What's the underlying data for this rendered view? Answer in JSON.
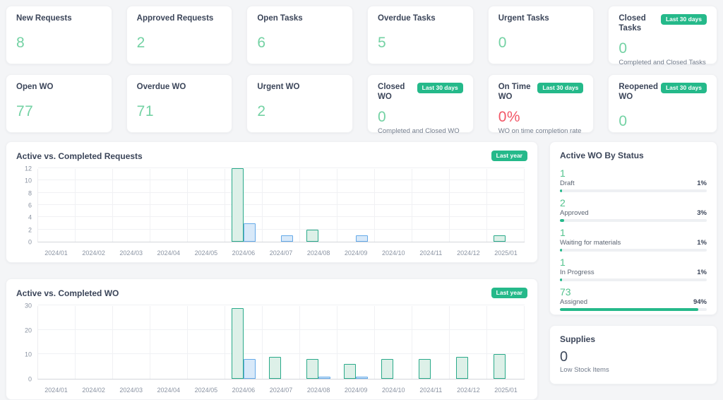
{
  "colors": {
    "accent_green": "#25b98a",
    "kpi_number_green": "#74d2a4",
    "kpi_number_red": "#f25767",
    "bar_active_fill": "#ddf0e8",
    "bar_active_stroke": "#2aaa8a",
    "bar_completed_fill": "#d8e9f9",
    "bar_completed_stroke": "#64a9e8"
  },
  "kpi_cards": [
    {
      "title": "New Requests",
      "value": "8",
      "color": "green"
    },
    {
      "title": "Approved Requests",
      "value": "2",
      "color": "green"
    },
    {
      "title": "Open Tasks",
      "value": "6",
      "color": "green"
    },
    {
      "title": "Overdue Tasks",
      "value": "5",
      "color": "green"
    },
    {
      "title": "Urgent Tasks",
      "value": "0",
      "color": "green"
    },
    {
      "title": "Closed Tasks",
      "value": "0",
      "color": "green",
      "badge": "Last 30 days",
      "subtitle": "Completed and Closed Tasks"
    },
    {
      "title": "Open WO",
      "value": "77",
      "color": "green"
    },
    {
      "title": "Overdue WO",
      "value": "71",
      "color": "green"
    },
    {
      "title": "Urgent WO",
      "value": "2",
      "color": "green"
    },
    {
      "title": "Closed WO",
      "value": "0",
      "color": "green",
      "badge": "Last 30 days",
      "subtitle": "Completed and Closed WO"
    },
    {
      "title": "On Time WO",
      "value": "0%",
      "color": "red",
      "badge": "Last 30 days",
      "subtitle": "WO on time completion rate"
    },
    {
      "title": "Reopened WO",
      "value": "0",
      "color": "green",
      "badge": "Last 30 days"
    }
  ],
  "chart_data": [
    {
      "type": "bar",
      "title": "Active vs. Completed Requests",
      "badge": "Last year",
      "categories": [
        "2024/01",
        "2024/02",
        "2024/03",
        "2024/04",
        "2024/05",
        "2024/06",
        "2024/07",
        "2024/08",
        "2024/09",
        "2024/10",
        "2024/11",
        "2024/12",
        "2025/01"
      ],
      "series": [
        {
          "name": "Active",
          "fill": "bar_active_fill",
          "stroke": "bar_active_stroke",
          "values": [
            0,
            0,
            0,
            0,
            0,
            12,
            0,
            2,
            0,
            0,
            0,
            0,
            1
          ]
        },
        {
          "name": "Completed",
          "fill": "bar_completed_fill",
          "stroke": "bar_completed_stroke",
          "values": [
            0,
            0,
            0,
            0,
            0,
            3,
            1,
            0,
            1,
            0,
            0,
            0,
            0
          ]
        }
      ],
      "ylim": [
        0,
        12
      ],
      "ytick_step": 2,
      "grid": true,
      "legend": "none"
    },
    {
      "type": "bar",
      "title": "Active vs. Completed WO",
      "badge": "Last year",
      "categories": [
        "2024/01",
        "2024/02",
        "2024/03",
        "2024/04",
        "2024/05",
        "2024/06",
        "2024/07",
        "2024/08",
        "2024/09",
        "2024/10",
        "2024/11",
        "2024/12",
        "2025/01"
      ],
      "series": [
        {
          "name": "Active",
          "fill": "bar_active_fill",
          "stroke": "bar_active_stroke",
          "values": [
            0,
            0,
            0,
            0,
            0,
            29,
            9,
            8,
            6,
            8,
            8,
            9,
            10
          ]
        },
        {
          "name": "Completed",
          "fill": "bar_completed_fill",
          "stroke": "bar_completed_stroke",
          "values": [
            0,
            0,
            0,
            0,
            0,
            8,
            0,
            1,
            1,
            0,
            0,
            0,
            0
          ]
        }
      ],
      "ylim": [
        0,
        30
      ],
      "ytick_step": 10,
      "grid": true,
      "legend": "none"
    }
  ],
  "wo_status": {
    "title": "Active WO By Status",
    "items": [
      {
        "count": "1",
        "label": "Draft",
        "percent": "1%",
        "percent_value": 1
      },
      {
        "count": "2",
        "label": "Approved",
        "percent": "3%",
        "percent_value": 3
      },
      {
        "count": "1",
        "label": "Waiting for materials",
        "percent": "1%",
        "percent_value": 1
      },
      {
        "count": "1",
        "label": "In Progress",
        "percent": "1%",
        "percent_value": 1
      },
      {
        "count": "73",
        "label": "Assigned",
        "percent": "94%",
        "percent_value": 94
      }
    ]
  },
  "supplies": {
    "title": "Supplies",
    "value": "0",
    "subtitle": "Low Stock Items"
  }
}
